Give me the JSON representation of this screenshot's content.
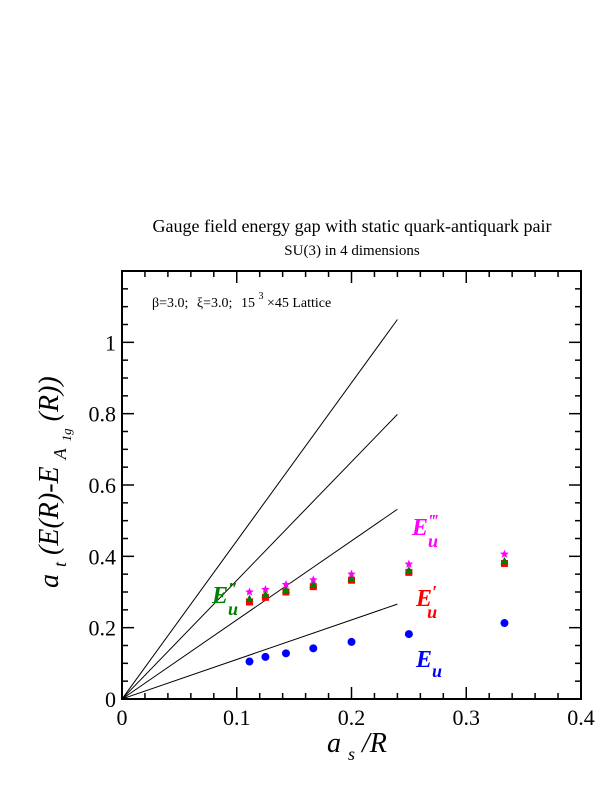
{
  "chart_data": {
    "type": "scatter",
    "title": "Gauge field energy gap with static quark-antiquark pair",
    "subtitle": "SU(3) in 4 dimensions",
    "annotation": {
      "beta": "β=3.0;",
      "xi": "ξ=3.0;",
      "lattice_base": "15",
      "lattice_exp": "3",
      "lattice_rest": "×45 Lattice"
    },
    "xlabel": {
      "main": "a",
      "sub": "s",
      "rest": "/R"
    },
    "ylabel": {
      "main": "a",
      "sub": "t",
      "rest": "(E(R)-E",
      "sub2": "A",
      "sub3": "1g",
      "rest2": "(R))"
    },
    "xlim": [
      0,
      0.4
    ],
    "ylim": [
      0,
      1.2
    ],
    "xticks": [
      "0",
      "0.1",
      "0.2",
      "0.3",
      "0.4"
    ],
    "xtick_values": [
      0,
      0.1,
      0.2,
      0.3,
      0.4
    ],
    "yticks": [
      "0",
      "0.2",
      "0.4",
      "0.6",
      "0.8",
      "1"
    ],
    "ytick_values": [
      0,
      0.2,
      0.4,
      0.6,
      0.8,
      1.0
    ],
    "grid": false,
    "lines": [
      {
        "x": [
          0,
          0.24
        ],
        "y": [
          0,
          0.266
        ]
      },
      {
        "x": [
          0,
          0.24
        ],
        "y": [
          0,
          0.532
        ]
      },
      {
        "x": [
          0,
          0.24
        ],
        "y": [
          0,
          0.798
        ]
      },
      {
        "x": [
          0,
          0.24
        ],
        "y": [
          0,
          1.064
        ]
      }
    ],
    "series": [
      {
        "name": "E_u",
        "label": {
          "base": "E",
          "sub": "u",
          "prime": ""
        },
        "color": "#0000ff",
        "marker": "circle",
        "x": [
          0.1111,
          0.125,
          0.1429,
          0.1667,
          0.2,
          0.25,
          0.3333
        ],
        "y": [
          0.105,
          0.118,
          0.128,
          0.142,
          0.16,
          0.182,
          0.213
        ]
      },
      {
        "name": "E'_u",
        "label": {
          "base": "E",
          "sub": "u",
          "prime": "′"
        },
        "color": "#ff0000",
        "marker": "square",
        "x": [
          0.1111,
          0.125,
          0.1429,
          0.1667,
          0.2,
          0.25,
          0.3333
        ],
        "y": [
          0.272,
          0.285,
          0.3,
          0.315,
          0.333,
          0.355,
          0.38
        ]
      },
      {
        "name": "E''_u",
        "label": {
          "base": "E",
          "sub": "u",
          "prime": "″"
        },
        "color": "#008000",
        "marker": "triangle",
        "x": [
          0.1111,
          0.125,
          0.1429,
          0.1667,
          0.2,
          0.25,
          0.3333
        ],
        "y": [
          0.28,
          0.292,
          0.306,
          0.32,
          0.338,
          0.36,
          0.386
        ]
      },
      {
        "name": "E'''_u",
        "label": {
          "base": "E",
          "sub": "u",
          "prime": "‴"
        },
        "color": "#ff00ff",
        "marker": "star",
        "x": [
          0.1111,
          0.125,
          0.1429,
          0.1667,
          0.2,
          0.25,
          0.3333
        ],
        "y": [
          0.3,
          0.307,
          0.321,
          0.334,
          0.35,
          0.378,
          0.406
        ]
      }
    ]
  }
}
